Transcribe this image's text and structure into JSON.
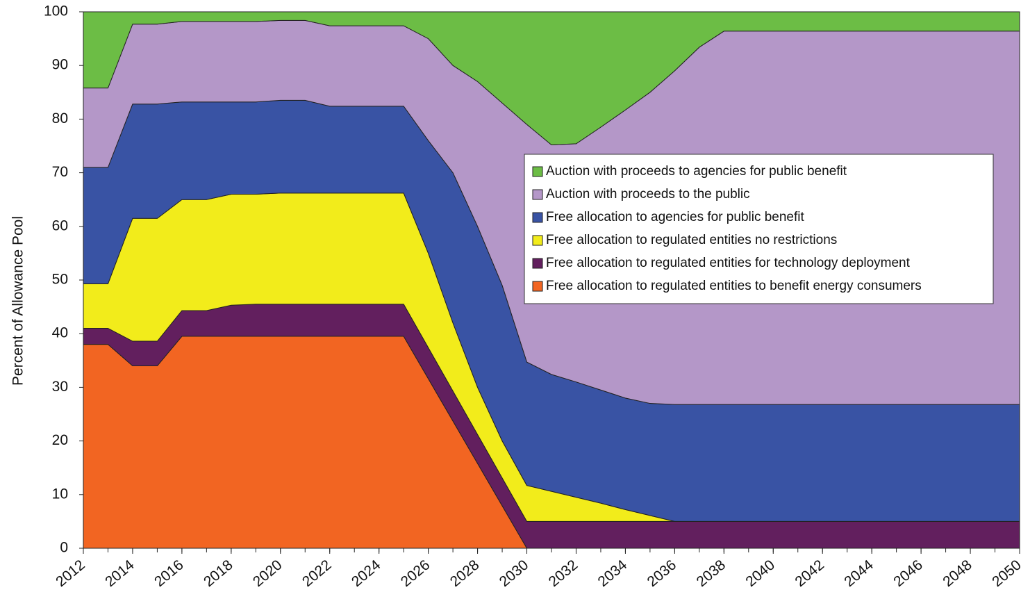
{
  "chart_data": {
    "type": "stacked_area",
    "y_label": "Percent of Allowance Pool",
    "x": [
      2012,
      2013,
      2014,
      2015,
      2016,
      2017,
      2018,
      2019,
      2020,
      2021,
      2022,
      2023,
      2024,
      2025,
      2026,
      2027,
      2028,
      2029,
      2030,
      2031,
      2032,
      2033,
      2034,
      2035,
      2036,
      2037,
      2038,
      2039,
      2040,
      2041,
      2042,
      2043,
      2044,
      2045,
      2046,
      2047,
      2048,
      2049,
      2050
    ],
    "xlim": [
      2012,
      2050
    ],
    "xticks": [
      2012,
      2014,
      2016,
      2018,
      2020,
      2022,
      2024,
      2026,
      2028,
      2030,
      2032,
      2034,
      2036,
      2038,
      2040,
      2042,
      2044,
      2046,
      2048,
      2050
    ],
    "ylim": [
      0,
      100
    ],
    "yticks": [
      0,
      10,
      20,
      30,
      40,
      50,
      60,
      70,
      80,
      90,
      100
    ],
    "legend": "upper right",
    "series": [
      {
        "name": "Free allocation to regulated entities to benefit energy consumers",
        "color": "#f26522",
        "values": [
          38,
          38,
          34,
          34,
          39.5,
          39.5,
          39.5,
          39.5,
          39.5,
          39.5,
          39.5,
          39.5,
          39.5,
          39.5,
          31.6,
          23.7,
          15.8,
          7.9,
          0,
          0,
          0,
          0,
          0,
          0,
          0,
          0,
          0,
          0,
          0,
          0,
          0,
          0,
          0,
          0,
          0,
          0,
          0,
          0,
          0
        ]
      },
      {
        "name": "Free allocation to regulated entities for technology deployment",
        "color": "#621f5e",
        "values": [
          3,
          3,
          4.6,
          4.6,
          4.8,
          4.8,
          5.8,
          6,
          6,
          6,
          6,
          6,
          6,
          6,
          5.8,
          5.6,
          5.4,
          5.2,
          5,
          5,
          5,
          5,
          5,
          5,
          5,
          5,
          5,
          5,
          5,
          5,
          5,
          5,
          5,
          5,
          5,
          5,
          5,
          5,
          5
        ]
      },
      {
        "name": "Free allocation to regulated entities no restrictions",
        "color": "#f2ec1b",
        "values": [
          8.3,
          8.3,
          22.9,
          22.9,
          20.7,
          20.7,
          20.7,
          20.5,
          20.7,
          20.7,
          20.7,
          20.7,
          20.7,
          20.7,
          17.6,
          12.7,
          8.8,
          6.9,
          6.7,
          5.6,
          4.5,
          3.4,
          2.2,
          1.1,
          0,
          0,
          0,
          0,
          0,
          0,
          0,
          0,
          0,
          0,
          0,
          0,
          0,
          0,
          0
        ]
      },
      {
        "name": "Free allocation to agencies for public benefit",
        "color": "#3953a4",
        "values": [
          21.7,
          21.7,
          21.3,
          21.3,
          18.2,
          18.2,
          17.2,
          17.2,
          17.3,
          17.3,
          16.2,
          16.2,
          16.2,
          16.2,
          21,
          28,
          30,
          29,
          23,
          21.8,
          21.5,
          21.1,
          20.8,
          20.9,
          21.8,
          21.8,
          21.8,
          21.8,
          21.8,
          21.8,
          21.8,
          21.8,
          21.8,
          21.8,
          21.8,
          21.8,
          21.8,
          21.8,
          21.8
        ]
      },
      {
        "name": "Auction with proceeds to the public",
        "color": "#b497c8",
        "values": [
          14.8,
          14.8,
          14.9,
          14.9,
          15,
          15,
          15,
          15,
          14.9,
          14.9,
          15,
          15,
          15,
          15,
          19,
          20,
          27,
          34,
          44.3,
          42.8,
          44.4,
          49,
          53.7,
          58,
          62.2,
          66.6,
          69.6,
          69.6,
          69.6,
          69.6,
          69.6,
          69.6,
          69.6,
          69.6,
          69.6,
          69.6,
          69.6,
          69.6,
          69.6
        ]
      },
      {
        "name": "Auction with proceeds to agencies for public benefit",
        "color": "#6cbd45",
        "values": [
          14.2,
          14.2,
          2.3,
          2.3,
          1.8,
          1.8,
          1.8,
          1.8,
          1.6,
          1.6,
          2.6,
          2.6,
          2.6,
          2.6,
          5,
          10,
          13,
          17,
          21,
          24.8,
          24.6,
          21.5,
          18.3,
          15,
          11,
          6.6,
          3.6,
          3.6,
          3.6,
          3.6,
          3.6,
          3.6,
          3.6,
          3.6,
          3.6,
          3.6,
          3.6,
          3.6,
          3.6
        ]
      }
    ]
  }
}
